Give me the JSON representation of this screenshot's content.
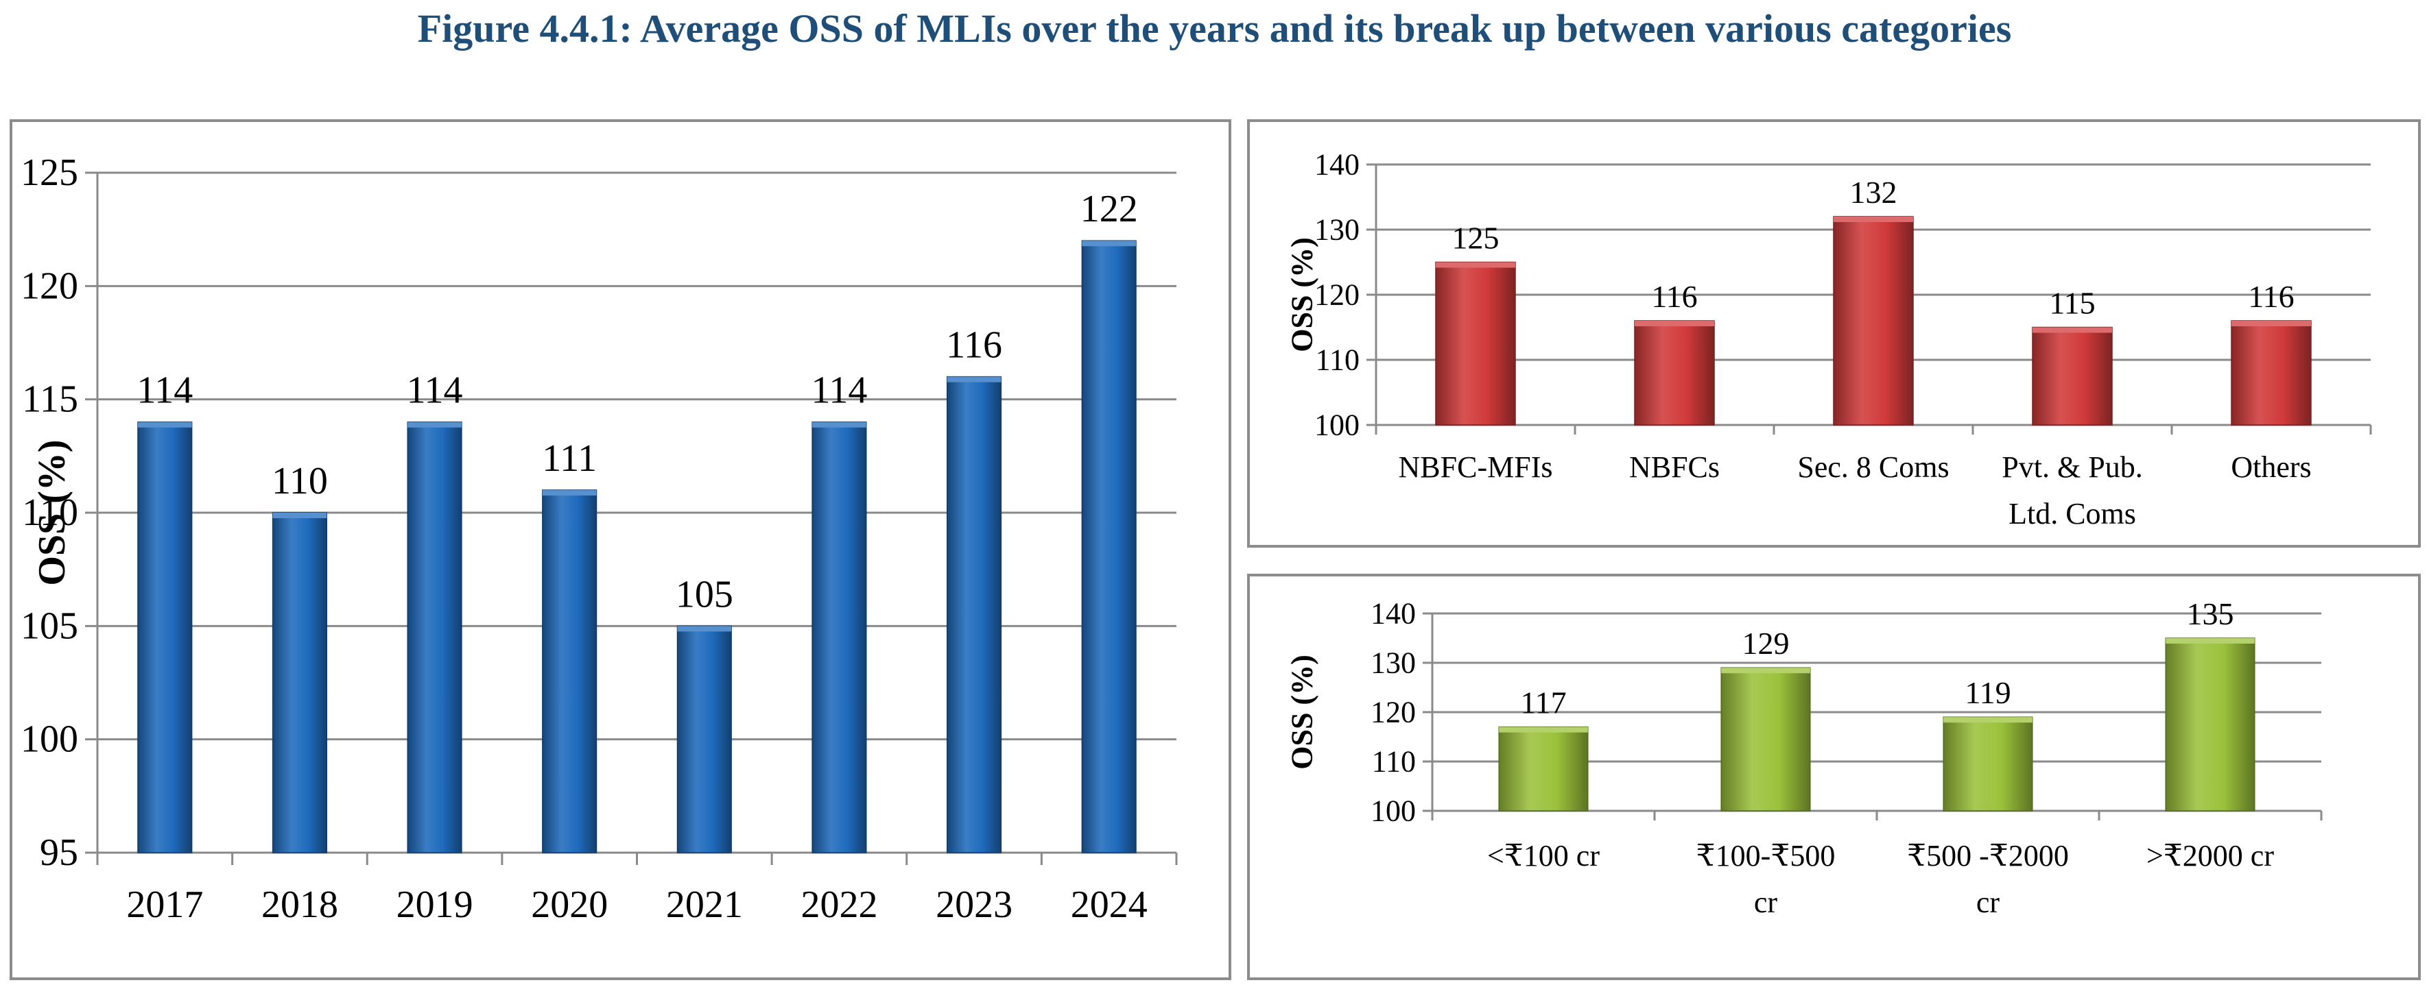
{
  "figure": {
    "title": "Figure 4.4.1: Average OSS of MLIs over the years and its break up between various categories"
  },
  "chart_data": [
    {
      "type": "bar",
      "title": "",
      "xlabel": "",
      "ylabel": "OSS (%)",
      "ylim": [
        95,
        125
      ],
      "yticks": [
        95,
        100,
        105,
        110,
        115,
        120,
        125
      ],
      "grid": true,
      "bar_color": "#1f6bbd",
      "categories": [
        "2017",
        "2018",
        "2019",
        "2020",
        "2021",
        "2022",
        "2023",
        "2024"
      ],
      "values": [
        114,
        110,
        114,
        111,
        105,
        114,
        116,
        122
      ],
      "data_labels": [
        "114",
        "110",
        "114",
        "111",
        "105",
        "114",
        "116",
        "122"
      ]
    },
    {
      "type": "bar",
      "title": "",
      "xlabel": "",
      "ylabel": "OSS (%)",
      "ylim": [
        100,
        140
      ],
      "yticks": [
        100,
        110,
        120,
        130,
        140
      ],
      "grid": true,
      "bar_color": "#d13a3a",
      "categories": [
        [
          "NBFC-MFIs"
        ],
        [
          "NBFCs"
        ],
        [
          "Sec. 8 Coms"
        ],
        [
          "Pvt. & Pub.",
          "Ltd. Coms"
        ],
        [
          "Others"
        ]
      ],
      "values": [
        125,
        116,
        132,
        115,
        116
      ],
      "data_labels": [
        "125",
        "116",
        "132",
        "115",
        "116"
      ]
    },
    {
      "type": "bar",
      "title": "",
      "xlabel": "",
      "ylabel": "OSS (%)",
      "ylim": [
        100,
        140
      ],
      "yticks": [
        100,
        110,
        120,
        130,
        140
      ],
      "grid": true,
      "bar_color": "#9bc23b",
      "categories": [
        [
          "<₹100 cr"
        ],
        [
          "₹100-₹500",
          "cr"
        ],
        [
          "₹500 -₹2000",
          "cr"
        ],
        [
          ">₹2000 cr"
        ]
      ],
      "values": [
        117,
        129,
        119,
        135
      ],
      "data_labels": [
        "117",
        "129",
        "119",
        "135"
      ]
    }
  ]
}
